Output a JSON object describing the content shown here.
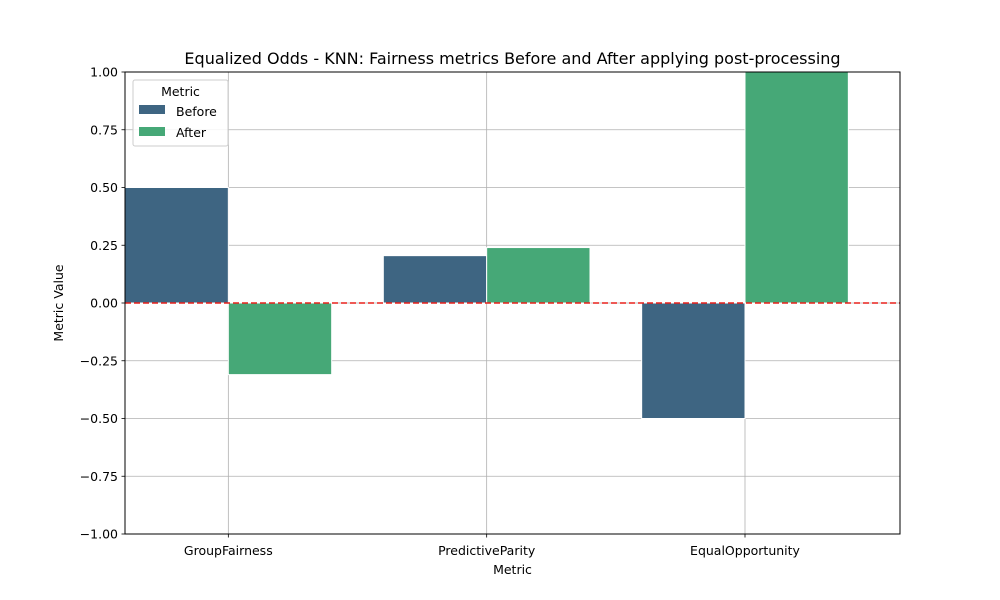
{
  "chart_data": {
    "type": "bar",
    "title": "Equalized Odds - KNN: Fairness metrics Before and After applying post-processing",
    "xlabel": "Metric",
    "ylabel": "Metric Value",
    "categories": [
      "GroupFairness",
      "PredictiveParity",
      "EqualOpportunity"
    ],
    "series": [
      {
        "name": "Before",
        "values": [
          0.5,
          0.205,
          -0.5
        ],
        "color": "#3e6582"
      },
      {
        "name": "After",
        "values": [
          -0.31,
          0.24,
          1.0
        ],
        "color": "#46a877"
      }
    ],
    "ylim": [
      -1.0,
      1.0
    ],
    "yticks": [
      -1.0,
      -0.75,
      -0.5,
      -0.25,
      0.0,
      0.25,
      0.5,
      0.75,
      1.0
    ],
    "ytick_labels": [
      "−1.00",
      "−0.75",
      "−0.50",
      "−0.25",
      "0.00",
      "0.25",
      "0.50",
      "0.75",
      "1.00"
    ],
    "reference_line": {
      "y": 0.0,
      "color": "#e8221d",
      "style": "dashed"
    },
    "grid": true,
    "legend": {
      "title": "Metric",
      "placement": "top-left"
    }
  }
}
